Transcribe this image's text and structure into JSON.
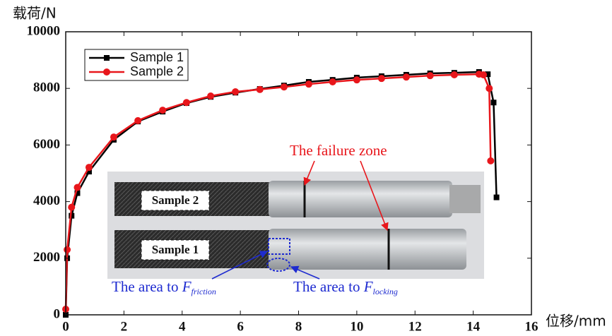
{
  "chart_data": {
    "type": "line",
    "y_label": "载荷/N",
    "x_label": "位移/mm",
    "xlim": [
      0,
      16
    ],
    "xticks": [
      0,
      2,
      4,
      6,
      8,
      10,
      12,
      14,
      16
    ],
    "ylim": [
      0,
      10000
    ],
    "yticks": [
      0,
      2000,
      4000,
      6000,
      8000,
      10000
    ],
    "legend": "upper left",
    "series": [
      {
        "name": "Sample 1",
        "color": "#000000",
        "marker": "square",
        "x": [
          0,
          0.05,
          0.2,
          0.4,
          0.8,
          1.65,
          2.48,
          3.33,
          4.15,
          4.98,
          5.83,
          6.67,
          7.5,
          8.35,
          9.17,
          10.0,
          10.85,
          11.7,
          12.52,
          13.35,
          14.2,
          14.5,
          14.7,
          14.8
        ],
        "values": [
          0,
          2000,
          3500,
          4300,
          5060,
          6185,
          6830,
          7180,
          7480,
          7700,
          7850,
          7980,
          8100,
          8230,
          8300,
          8380,
          8430,
          8480,
          8530,
          8550,
          8580,
          8500,
          7500,
          4150
        ]
      },
      {
        "name": "Sample 2",
        "color": "#e8161b",
        "marker": "circle",
        "x": [
          0,
          0.05,
          0.2,
          0.4,
          0.8,
          1.65,
          2.48,
          3.33,
          4.15,
          4.98,
          5.83,
          6.67,
          7.5,
          8.35,
          9.17,
          10.0,
          10.85,
          11.7,
          12.52,
          13.35,
          14.2,
          14.35,
          14.55,
          14.6
        ],
        "values": [
          200,
          2300,
          3800,
          4500,
          5210,
          6280,
          6860,
          7230,
          7500,
          7730,
          7880,
          7960,
          8050,
          8150,
          8230,
          8300,
          8350,
          8400,
          8450,
          8480,
          8500,
          8480,
          8000,
          5440
        ]
      }
    ],
    "annotations": {
      "sample_2": "Sample 2",
      "sample_1": "Sample 1",
      "failure_zone": "The failure zone",
      "friction": {
        "text": "The area to ",
        "symbol": "F",
        "subscript": "friction"
      },
      "locking": {
        "text": "The area to ",
        "symbol": "F",
        "subscript": "locking"
      }
    }
  }
}
